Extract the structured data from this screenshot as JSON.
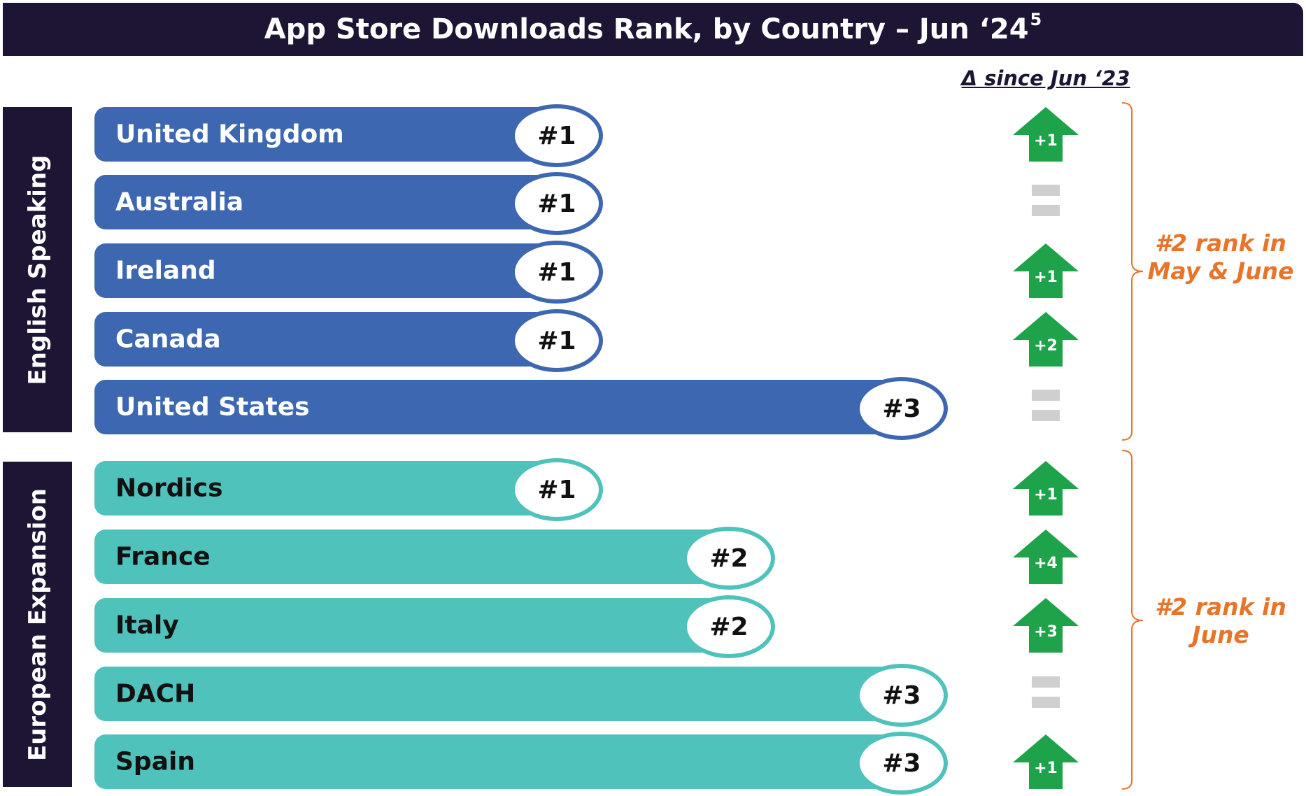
{
  "title": {
    "text": "App Store Downloads Rank, by Country – Jun ‘24",
    "superscript": "5"
  },
  "delta_header": "Δ since Jun ‘23",
  "colors": {
    "header_bg": "#1e1534",
    "english_bar": "#3d67b0",
    "european_bar": "#4fc2bb",
    "arrow_up": "#1fa34a",
    "no_change": "#cfcfcf",
    "annotation": "#e8742a"
  },
  "chart_data": {
    "type": "bar",
    "title": "App Store Downloads Rank, by Country – Jun ‘24",
    "value_meaning": "rank (lower is better)",
    "groups": [
      {
        "name": "English Speaking",
        "annotation": "#2 rank in May & June",
        "rows": [
          {
            "country": "United Kingdom",
            "rank": 1,
            "rank_label": "#1",
            "delta": 1,
            "delta_label": "+1"
          },
          {
            "country": "Australia",
            "rank": 1,
            "rank_label": "#1",
            "delta": 0,
            "delta_label": ""
          },
          {
            "country": "Ireland",
            "rank": 1,
            "rank_label": "#1",
            "delta": 1,
            "delta_label": "+1"
          },
          {
            "country": "Canada",
            "rank": 1,
            "rank_label": "#1",
            "delta": 2,
            "delta_label": "+2"
          },
          {
            "country": "United States",
            "rank": 3,
            "rank_label": "#3",
            "delta": 0,
            "delta_label": ""
          }
        ]
      },
      {
        "name": "European Expansion",
        "annotation": "#2 rank in June",
        "rows": [
          {
            "country": "Nordics",
            "rank": 1,
            "rank_label": "#1",
            "delta": 1,
            "delta_label": "+1"
          },
          {
            "country": "France",
            "rank": 2,
            "rank_label": "#2",
            "delta": 4,
            "delta_label": "+4"
          },
          {
            "country": "Italy",
            "rank": 2,
            "rank_label": "#2",
            "delta": 3,
            "delta_label": "+3"
          },
          {
            "country": "DACH",
            "rank": 3,
            "rank_label": "#3",
            "delta": 0,
            "delta_label": ""
          },
          {
            "country": "Spain",
            "rank": 3,
            "rank_label": "#3",
            "delta": 1,
            "delta_label": "+1"
          }
        ]
      }
    ]
  }
}
